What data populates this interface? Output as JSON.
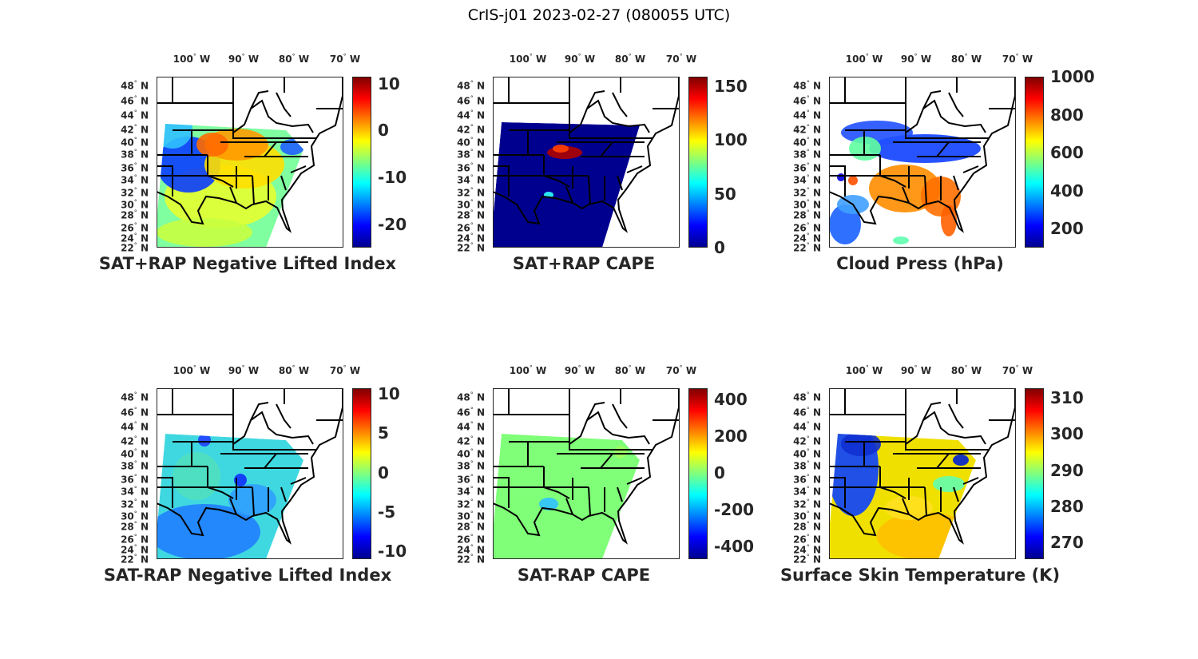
{
  "figure_title": "CrIS-j01 2023-02-27 (080055 UTC)",
  "lon_ticks": [
    "100",
    "90",
    "80",
    "70"
  ],
  "lon_hemisphere": "W",
  "lat_ticks": [
    "48",
    "46",
    "44",
    "42",
    "40",
    "38",
    "36",
    "34",
    "32",
    "30",
    "28",
    "26",
    "24",
    "22"
  ],
  "lat_hemisphere": "N",
  "degree_symbol": "°",
  "colormap": "jet",
  "panels": [
    {
      "title": "SAT+RAP Negative Lifted Index",
      "clim": [
        -25,
        11.5
      ],
      "cbar_ticks": [
        "10",
        "0",
        "-10",
        "-20"
      ],
      "cbar_tick_values": [
        10,
        0,
        -10,
        -20
      ]
    },
    {
      "title": "SAT+RAP CAPE",
      "clim": [
        0,
        159
      ],
      "cbar_ticks": [
        "150",
        "100",
        "50",
        "0"
      ],
      "cbar_tick_values": [
        150,
        100,
        50,
        0
      ]
    },
    {
      "title": "Cloud Press (hPa)",
      "clim": [
        100,
        1000
      ],
      "cbar_ticks": [
        "1000",
        "800",
        "600",
        "400",
        "200"
      ],
      "cbar_tick_values": [
        1000,
        800,
        600,
        400,
        200
      ]
    },
    {
      "title": "SAT-RAP Negative Lifted Index",
      "clim": [
        -11,
        10.7
      ],
      "cbar_ticks": [
        "10",
        "5",
        "0",
        "-5",
        "-10"
      ],
      "cbar_tick_values": [
        10,
        5,
        0,
        -5,
        -10
      ]
    },
    {
      "title": "SAT-RAP CAPE",
      "clim": [
        -470,
        461
      ],
      "cbar_ticks": [
        "400",
        "200",
        "0",
        "-200",
        "-400"
      ],
      "cbar_tick_values": [
        400,
        200,
        0,
        -200,
        -400
      ]
    },
    {
      "title": "Surface Skin Temperature (K)",
      "clim": [
        265.4,
        312.7
      ],
      "cbar_ticks": [
        "310",
        "300",
        "290",
        "280",
        "270"
      ],
      "cbar_tick_values": [
        310,
        300,
        290,
        280,
        270
      ]
    }
  ]
}
